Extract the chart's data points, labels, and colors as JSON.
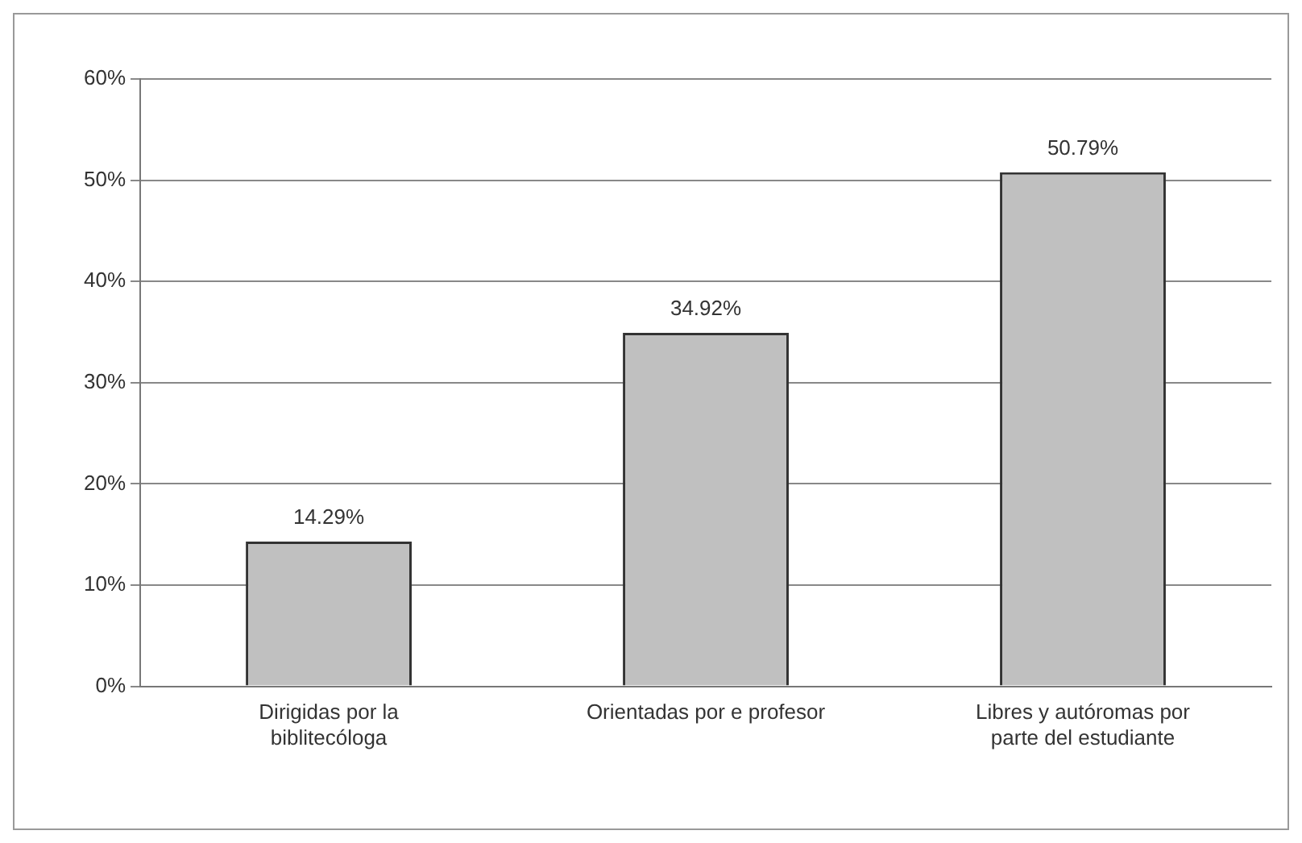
{
  "chart_data": {
    "type": "bar",
    "categories": [
      "Dirigidas por la biblitecóloga",
      "Orientadas por e profesor",
      "Libres y autóromas por parte del estudiante"
    ],
    "values": [
      14.29,
      34.92,
      50.79
    ],
    "color": "#c0c0c0",
    "value_labels": [
      "14.29%",
      "34.92%",
      "50.79%"
    ],
    "ylim": [
      0,
      60
    ],
    "yticks": [
      {
        "value": 0,
        "label": "0%"
      },
      {
        "value": 10,
        "label": "10%"
      },
      {
        "value": 20,
        "label": "20%"
      },
      {
        "value": 30,
        "label": "30%"
      },
      {
        "value": 40,
        "label": "40%"
      },
      {
        "value": 50,
        "label": "50%"
      },
      {
        "value": 60,
        "label": "60%"
      }
    ],
    "grid": "y",
    "legend": false
  }
}
